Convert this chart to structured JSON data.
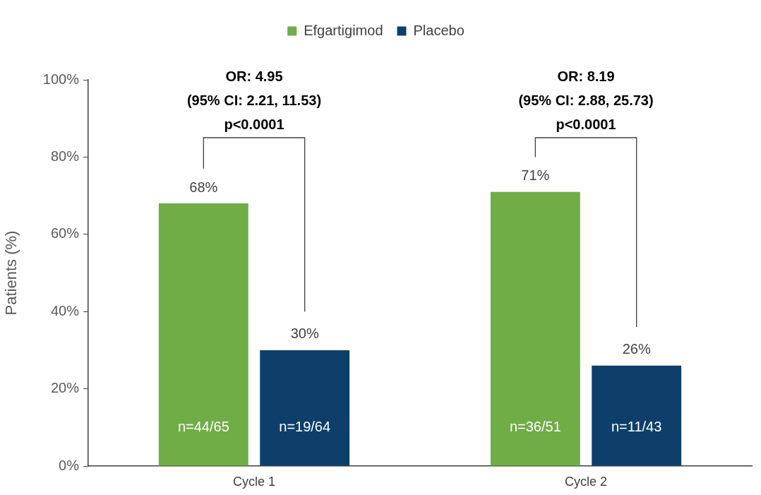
{
  "chart_data": {
    "type": "bar",
    "ylabel": "Patients (%)",
    "categories": [
      "Cycle 1",
      "Cycle 2"
    ],
    "series": [
      {
        "name": "Efgartigimod",
        "color": "#70ad47",
        "values": [
          68,
          71
        ],
        "value_labels": [
          "68%",
          "71%"
        ]
      },
      {
        "name": "Placebo",
        "color": "#0e3f6b",
        "values": [
          30,
          26
        ],
        "value_labels": [
          "30%",
          "26%"
        ]
      }
    ],
    "ylim": [
      0,
      100
    ],
    "yticks": [
      {
        "value": 0,
        "label": "0%"
      },
      {
        "value": 20,
        "label": "20%"
      },
      {
        "value": 40,
        "label": "40%"
      },
      {
        "value": 60,
        "label": "60%"
      },
      {
        "value": 80,
        "label": "80%"
      },
      {
        "value": 100,
        "label": "100%"
      }
    ],
    "grid": false,
    "legend": "top",
    "annotations": [
      "OR: 4.95\n(95% CI: 2.21, 11.53)\np<0.0001",
      "OR: 8.19\n(95% CI: 2.88, 25.73)\np<0.0001",
      "n=44/65",
      "n=19/64",
      "n=36/51",
      "n=11/43"
    ]
  }
}
